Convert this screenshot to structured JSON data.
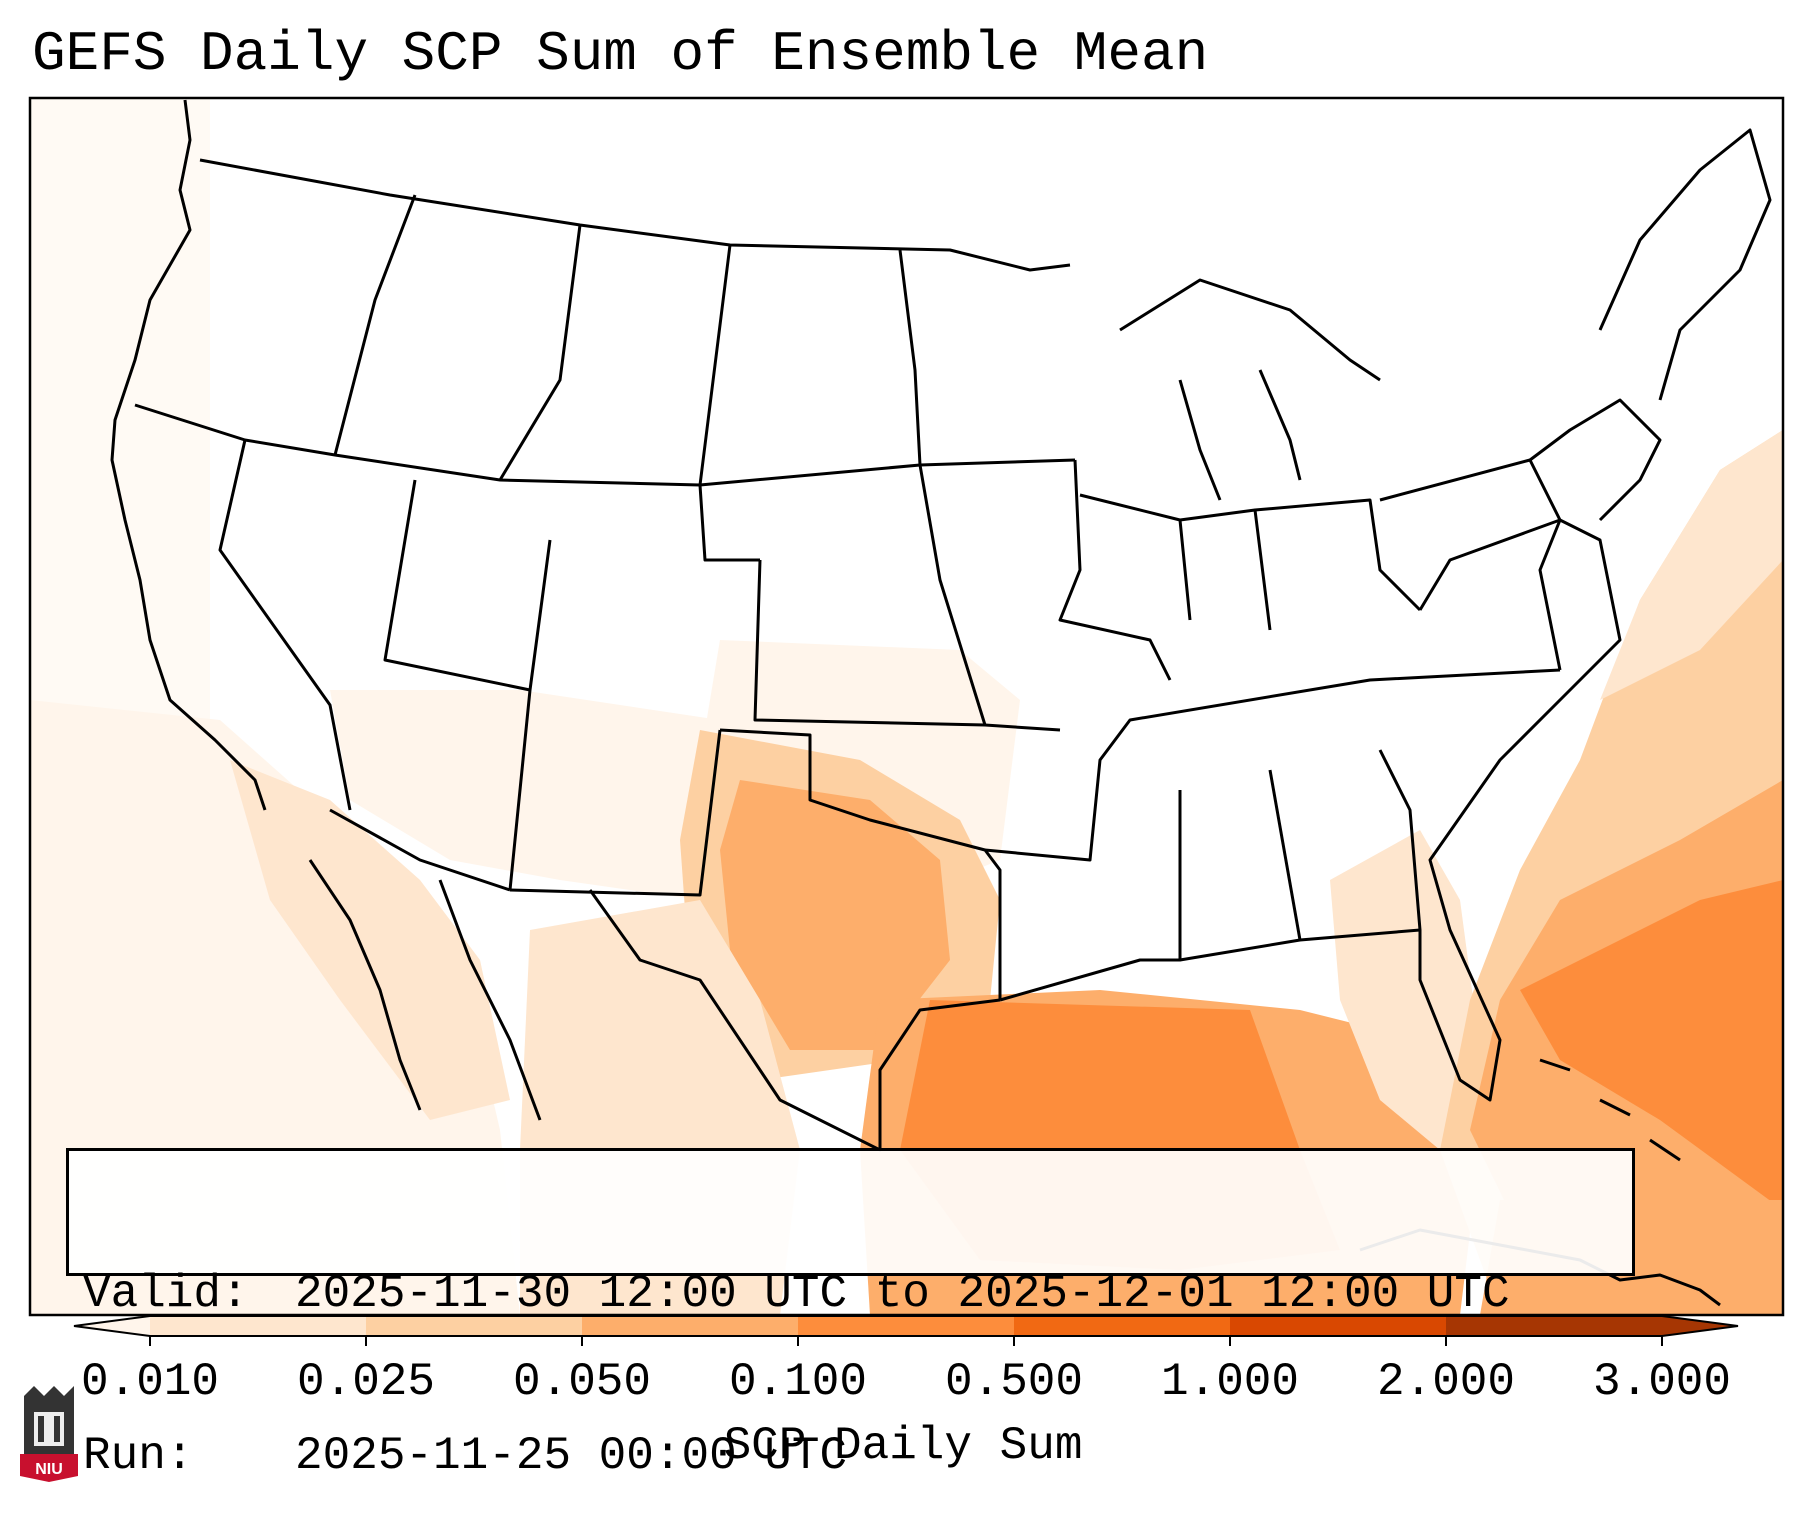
{
  "title": "GEFS Daily SCP Sum of Ensemble Mean",
  "info": {
    "valid_label": "Valid:",
    "valid_value": "2025-11-30 12:00 UTC to 2025-12-01 12:00 UTC",
    "run_label": "Run:",
    "run_value": "2025-11-25 00:00 UTC"
  },
  "colorbar": {
    "title": "SCP Daily Sum",
    "ticks": [
      "0.010",
      "0.025",
      "0.050",
      "0.100",
      "0.500",
      "1.000",
      "2.000",
      "3.000"
    ],
    "colors": [
      "#fff5eb",
      "#fee6ce",
      "#fdd0a2",
      "#fdae6b",
      "#fd8d3c",
      "#f16913",
      "#d94801",
      "#a63603"
    ],
    "extend": "both"
  },
  "logo": {
    "text": "NIU"
  },
  "colors": {
    "land": "#ffffff",
    "border": "#000000",
    "accent": "#fd8d3c"
  }
}
